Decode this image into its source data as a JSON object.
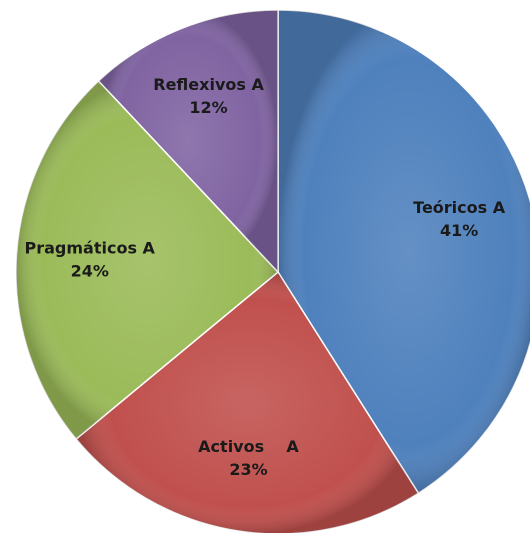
{
  "chart_data": {
    "type": "pie",
    "categories": [
      "Teóricos A",
      "Activos    A",
      "Pragmáticos A",
      "Reflexivos A"
    ],
    "values": [
      41,
      23,
      24,
      12
    ],
    "value_labels": [
      "41%",
      "23%",
      "24%",
      "12%"
    ],
    "colors": [
      "#4f81bd",
      "#c0504d",
      "#9bbb59",
      "#8064a2"
    ]
  }
}
